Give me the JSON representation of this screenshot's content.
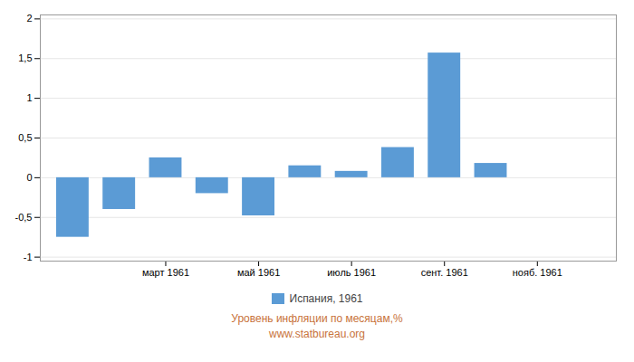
{
  "chart_data": {
    "type": "bar",
    "x": [
      1,
      2,
      3,
      4,
      5,
      6,
      7,
      8,
      9,
      10,
      11,
      12
    ],
    "series": [
      {
        "name": "Испания, 1961",
        "color": "#5B9BD5",
        "values": [
          -0.75,
          -0.4,
          0.25,
          -0.2,
          -0.48,
          0.15,
          0.08,
          0.38,
          1.57,
          0.18,
          0.0,
          0.0
        ]
      }
    ],
    "xlim": [
      0.3,
      12.7
    ],
    "xticks": [
      {
        "value": 3,
        "label": "март 1961"
      },
      {
        "value": 5,
        "label": "май 1961"
      },
      {
        "value": 7,
        "label": "июль 1961"
      },
      {
        "value": 9,
        "label": "сент. 1961"
      },
      {
        "value": 11,
        "label": "нояб. 1961"
      }
    ],
    "ylim": [
      -1.05,
      2.05
    ],
    "yticks": [
      -1,
      {
        "value": -0.5,
        "label": "-0,5"
      },
      0,
      {
        "value": 0.5,
        "label": "0,5"
      },
      1,
      {
        "value": 1.5,
        "label": "1,5"
      },
      2
    ],
    "grid": true,
    "legend": "bottom",
    "annotations": [
      "Уровень инфляции по месяцам,%",
      "www.statbureau.org"
    ],
    "annotations_color": "#c8733b"
  }
}
